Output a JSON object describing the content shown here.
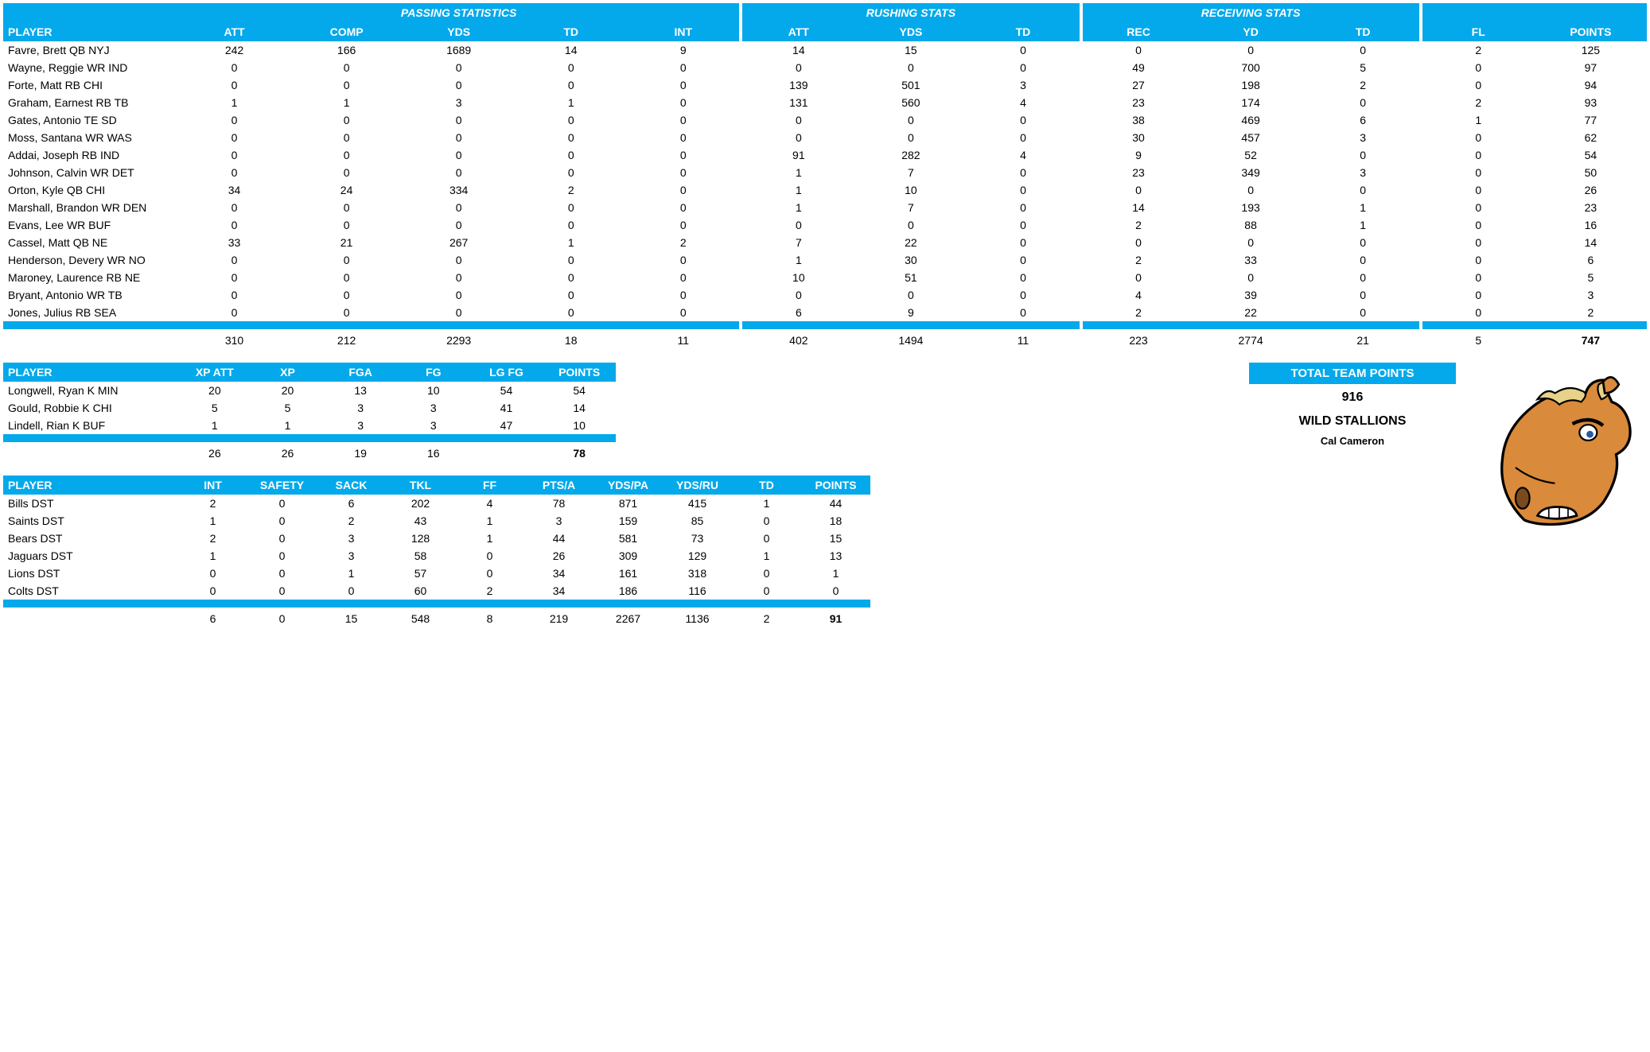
{
  "colors": {
    "header_bg": "#04a9eb",
    "header_fg": "#ffffff",
    "body_bg": "#ffffff",
    "text": "#000000"
  },
  "offense": {
    "group_headers": [
      "PASSING STATISTICS",
      "RUSHING STATS",
      "RECEIVING STATS",
      ""
    ],
    "columns": [
      "PLAYER",
      "ATT",
      "COMP",
      "YDS",
      "TD",
      "INT",
      "ATT",
      "YDS",
      "TD",
      "REC",
      "YD",
      "TD",
      "FL",
      "POINTS"
    ],
    "rows": [
      [
        "Favre, Brett QB NYJ",
        242,
        166,
        1689,
        14,
        9,
        14,
        15,
        0,
        0,
        0,
        0,
        2,
        125
      ],
      [
        "Wayne, Reggie WR IND",
        0,
        0,
        0,
        0,
        0,
        0,
        0,
        0,
        49,
        700,
        5,
        0,
        97
      ],
      [
        "Forte, Matt RB CHI",
        0,
        0,
        0,
        0,
        0,
        139,
        501,
        3,
        27,
        198,
        2,
        0,
        94
      ],
      [
        "Graham, Earnest RB TB",
        1,
        1,
        3,
        1,
        0,
        131,
        560,
        4,
        23,
        174,
        0,
        2,
        93
      ],
      [
        "Gates, Antonio TE SD",
        0,
        0,
        0,
        0,
        0,
        0,
        0,
        0,
        38,
        469,
        6,
        1,
        77
      ],
      [
        "Moss, Santana WR WAS",
        0,
        0,
        0,
        0,
        0,
        0,
        0,
        0,
        30,
        457,
        3,
        0,
        62
      ],
      [
        "Addai, Joseph RB IND",
        0,
        0,
        0,
        0,
        0,
        91,
        282,
        4,
        9,
        52,
        0,
        0,
        54
      ],
      [
        "Johnson, Calvin WR DET",
        0,
        0,
        0,
        0,
        0,
        1,
        7,
        0,
        23,
        349,
        3,
        0,
        50
      ],
      [
        "Orton, Kyle QB CHI",
        34,
        24,
        334,
        2,
        0,
        1,
        10,
        0,
        0,
        0,
        0,
        0,
        26
      ],
      [
        "Marshall, Brandon WR DEN",
        0,
        0,
        0,
        0,
        0,
        1,
        7,
        0,
        14,
        193,
        1,
        0,
        23
      ],
      [
        "Evans, Lee WR BUF",
        0,
        0,
        0,
        0,
        0,
        0,
        0,
        0,
        2,
        88,
        1,
        0,
        16
      ],
      [
        "Cassel, Matt QB NE",
        33,
        21,
        267,
        1,
        2,
        7,
        22,
        0,
        0,
        0,
        0,
        0,
        14
      ],
      [
        "Henderson, Devery WR NO",
        0,
        0,
        0,
        0,
        0,
        1,
        30,
        0,
        2,
        33,
        0,
        0,
        6
      ],
      [
        "Maroney, Laurence RB NE",
        0,
        0,
        0,
        0,
        0,
        10,
        51,
        0,
        0,
        0,
        0,
        0,
        5
      ],
      [
        "Bryant, Antonio WR TB",
        0,
        0,
        0,
        0,
        0,
        0,
        0,
        0,
        4,
        39,
        0,
        0,
        3
      ],
      [
        "Jones, Julius RB SEA",
        0,
        0,
        0,
        0,
        0,
        6,
        9,
        0,
        2,
        22,
        0,
        0,
        2
      ]
    ],
    "totals": [
      "",
      310,
      212,
      2293,
      18,
      11,
      402,
      1494,
      11,
      223,
      2774,
      21,
      5,
      747
    ]
  },
  "kicking": {
    "columns": [
      "PLAYER",
      "XP ATT",
      "XP",
      "FGA",
      "FG",
      "LG FG",
      "POINTS"
    ],
    "rows": [
      [
        "Longwell, Ryan K MIN",
        20,
        20,
        13,
        10,
        54,
        54
      ],
      [
        "Gould, Robbie K CHI",
        5,
        5,
        3,
        3,
        41,
        14
      ],
      [
        "Lindell, Rian K BUF",
        1,
        1,
        3,
        3,
        47,
        10
      ]
    ],
    "totals": [
      "",
      26,
      26,
      19,
      16,
      "",
      78
    ]
  },
  "defense": {
    "columns": [
      "PLAYER",
      "INT",
      "SAFETY",
      "SACK",
      "TKL",
      "FF",
      "PTS/A",
      "YDS/PA",
      "YDS/RU",
      "TD",
      "POINTS"
    ],
    "rows": [
      [
        "Bills DST",
        2,
        0,
        6,
        202,
        4,
        78,
        871,
        415,
        1,
        44
      ],
      [
        "Saints DST",
        1,
        0,
        2,
        43,
        1,
        3,
        159,
        85,
        0,
        18
      ],
      [
        "Bears DST",
        2,
        0,
        3,
        128,
        1,
        44,
        581,
        73,
        0,
        15
      ],
      [
        "Jaguars DST",
        1,
        0,
        3,
        58,
        0,
        26,
        309,
        129,
        1,
        13
      ],
      [
        "Lions DST",
        0,
        0,
        1,
        57,
        0,
        34,
        161,
        318,
        0,
        1
      ],
      [
        "Colts DST",
        0,
        0,
        0,
        60,
        2,
        34,
        186,
        116,
        0,
        0
      ]
    ],
    "totals": [
      "",
      6,
      0,
      15,
      548,
      8,
      219,
      2267,
      1136,
      2,
      91
    ]
  },
  "team": {
    "label": "TOTAL TEAM POINTS",
    "points": 916,
    "name": "WILD STALLIONS",
    "owner": "Cal Cameron"
  }
}
